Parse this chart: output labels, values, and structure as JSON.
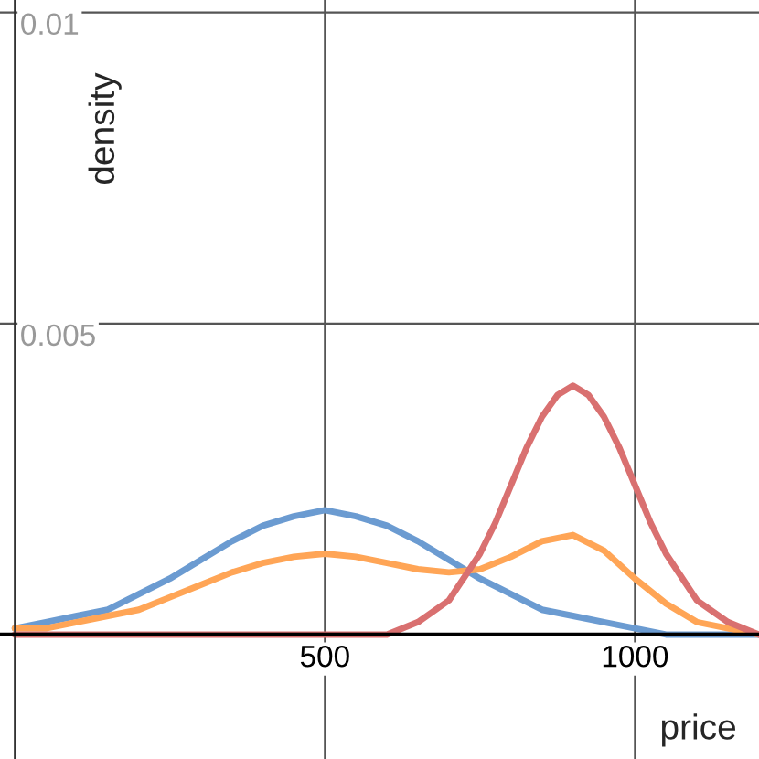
{
  "chart_data": {
    "type": "line",
    "xlabel": "price",
    "ylabel": "density",
    "xlim": [
      -24,
      1200
    ],
    "ylim": [
      -0.002,
      0.0102
    ],
    "xticks": [
      500,
      1000
    ],
    "yticks": [
      0.005,
      0.01
    ],
    "grid": true,
    "marker": "none",
    "line_style": "solid",
    "x": [
      0,
      50,
      100,
      150,
      200,
      250,
      300,
      350,
      400,
      450,
      500,
      550,
      600,
      650,
      700,
      750,
      800,
      850,
      900,
      950,
      1000,
      1050,
      1100,
      1150,
      1200
    ],
    "series": [
      {
        "color": "#6b9bd1",
        "values": [
          0.0001,
          0.0002,
          0.0003,
          0.0004,
          0.00065,
          0.0009,
          0.0012,
          0.0015,
          0.00175,
          0.0019,
          0.002,
          0.0019,
          0.00175,
          0.0015,
          0.0012,
          0.0009,
          0.00065,
          0.0004,
          0.0003,
          0.0002,
          0.0001,
          0.0,
          0.0,
          0.0,
          0.0
        ]
      },
      {
        "color": "#ffa556",
        "values": [
          0.0001,
          0.0001,
          0.0002,
          0.0003,
          0.0004,
          0.0006,
          0.0008,
          0.001,
          0.00115,
          0.00125,
          0.0013,
          0.00125,
          0.00115,
          0.00105,
          0.001,
          0.00105,
          0.00125,
          0.0015,
          0.0016,
          0.00135,
          0.0009,
          0.0005,
          0.0002,
          0.0001,
          0.0
        ]
      },
      {
        "color": "#d97070",
        "x": [
          0,
          100,
          200,
          300,
          400,
          500,
          550,
          600,
          650,
          700,
          750,
          775,
          800,
          825,
          850,
          875,
          900,
          925,
          950,
          975,
          1000,
          1025,
          1050,
          1100,
          1150,
          1200
        ],
        "values": [
          0.0,
          0.0,
          0.0,
          0.0,
          0.0,
          0.0,
          0.0,
          0.0,
          0.0002,
          0.00055,
          0.0013,
          0.0018,
          0.0024,
          0.003,
          0.0035,
          0.00385,
          0.004,
          0.00385,
          0.0035,
          0.003,
          0.0024,
          0.0018,
          0.0013,
          0.00055,
          0.0002,
          0.0
        ]
      }
    ]
  }
}
